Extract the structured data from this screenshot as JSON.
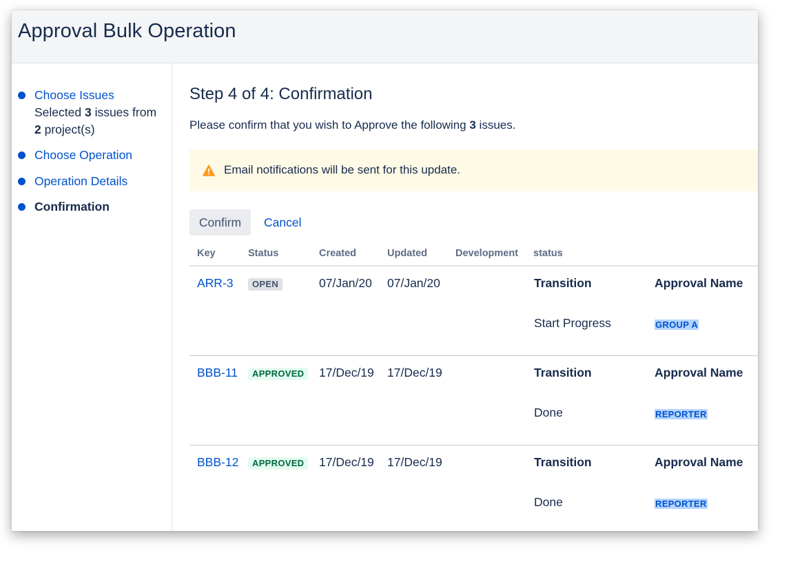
{
  "header": {
    "title": "Approval Bulk Operation"
  },
  "sidebar": {
    "steps": [
      {
        "label": "Choose Issues",
        "summary_prefix": "Selected ",
        "summary_count_issues": "3",
        "summary_mid": " issues from",
        "summary_count_projects": "2",
        "summary_suffix": " project(s)"
      },
      {
        "label": "Choose Operation"
      },
      {
        "label": "Operation Details"
      },
      {
        "label": "Confirmation"
      }
    ]
  },
  "main": {
    "title": "Step 4 of 4: Confirmation",
    "intro_prefix": "Please confirm that you wish to Approve the following ",
    "intro_count": "3",
    "intro_suffix": " issues.",
    "warning": "Email notifications will be sent for this update.",
    "confirm_label": "Confirm",
    "cancel_label": "Cancel",
    "columns": [
      "Key",
      "Status",
      "Created",
      "Updated",
      "Development",
      "status"
    ],
    "sub_columns": {
      "transition": "Transition",
      "approval_name": "Approval Name"
    },
    "rows": [
      {
        "key": "ARR-3",
        "status": "OPEN",
        "status_style": "open",
        "created": "07/Jan/20",
        "updated": "07/Jan/20",
        "transition": "Start Progress",
        "approval_name": "GROUP A"
      },
      {
        "key": "BBB-11",
        "status": "APPROVED",
        "status_style": "approved",
        "created": "17/Dec/19",
        "updated": "17/Dec/19",
        "transition": "Done",
        "approval_name": "REPORTER"
      },
      {
        "key": "BBB-12",
        "status": "APPROVED",
        "status_style": "approved",
        "created": "17/Dec/19",
        "updated": "17/Dec/19",
        "transition": "Done",
        "approval_name": "REPORTER"
      }
    ]
  },
  "colors": {
    "link": "#0052cc",
    "text": "#172b4d",
    "warning_bg": "#fffae6",
    "warning_icon": "#ff991f",
    "open_lozenge_bg": "#dfe1e6",
    "approved_lozenge_bg": "#e3fcef",
    "approved_lozenge_text": "#006644",
    "tag_bg": "#b3d4ff"
  },
  "icons": {
    "step_bullet": "filled-circle",
    "warning": "warning-triangle-icon"
  }
}
